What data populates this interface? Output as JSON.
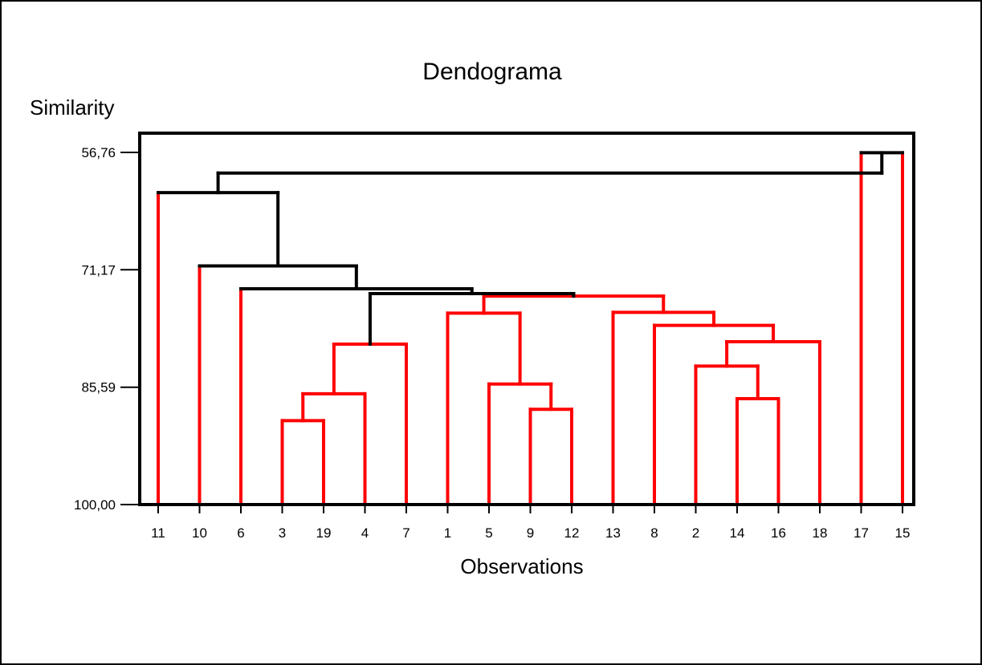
{
  "chart_data": {
    "type": "dendrogram",
    "title": "Dendograma",
    "ylabel": "Similarity",
    "xlabel": "Observations",
    "ylim": [
      56.76,
      100.0
    ],
    "yticks": [
      "56,76",
      "71,17",
      "85,59",
      "100,00"
    ],
    "ytick_values": [
      56.76,
      71.17,
      85.59,
      100.0
    ],
    "leaf_order": [
      "11",
      "10",
      "6",
      "3",
      "19",
      "4",
      "7",
      "1",
      "5",
      "9",
      "12",
      "13",
      "8",
      "2",
      "14",
      "16",
      "18",
      "17",
      "15"
    ],
    "merges": [
      {
        "id": "m1",
        "left": "3",
        "right": "19",
        "similarity": 89.7,
        "color": "red"
      },
      {
        "id": "m2",
        "left": "m1",
        "right": "4",
        "similarity": 86.4,
        "color": "red"
      },
      {
        "id": "m3",
        "left": "m2",
        "right": "7",
        "similarity": 80.3,
        "color": "red"
      },
      {
        "id": "m4",
        "left": "9",
        "right": "12",
        "similarity": 88.3,
        "color": "red"
      },
      {
        "id": "m5",
        "left": "5",
        "right": "m4",
        "similarity": 85.2,
        "color": "red"
      },
      {
        "id": "m6",
        "left": "1",
        "right": "m5",
        "similarity": 76.5,
        "color": "red"
      },
      {
        "id": "m7",
        "left": "14",
        "right": "16",
        "similarity": 87.0,
        "color": "red"
      },
      {
        "id": "m8",
        "left": "2",
        "right": "m7",
        "similarity": 83.0,
        "color": "red"
      },
      {
        "id": "m9",
        "left": "m8",
        "right": "18",
        "similarity": 80.0,
        "color": "red"
      },
      {
        "id": "m10",
        "left": "8",
        "right": "m9",
        "similarity": 78.0,
        "color": "red"
      },
      {
        "id": "m11",
        "left": "13",
        "right": "m10",
        "similarity": 76.4,
        "color": "red"
      },
      {
        "id": "m12",
        "left": "m6",
        "right": "m11",
        "similarity": 74.4,
        "color": "red"
      },
      {
        "id": "m13",
        "left": "m3",
        "right": "m12",
        "similarity": 74.1,
        "color": "black"
      },
      {
        "id": "m14",
        "left": "6",
        "right": "m13",
        "similarity": 73.5,
        "color": "black"
      },
      {
        "id": "m15",
        "left": "10",
        "right": "m14",
        "similarity": 70.7,
        "color": "black"
      },
      {
        "id": "m16",
        "left": "11",
        "right": "m15",
        "similarity": 61.7,
        "color": "black"
      },
      {
        "id": "m17",
        "left": "17",
        "right": "15",
        "similarity": 56.8,
        "color": "black"
      },
      {
        "id": "m18",
        "left": "m16",
        "right": "m17",
        "similarity": 59.3,
        "color": "black"
      }
    ],
    "colors": {
      "cluster": "#ff0000",
      "link": "#000000",
      "frame": "#000000",
      "background": "#ffffff"
    }
  }
}
